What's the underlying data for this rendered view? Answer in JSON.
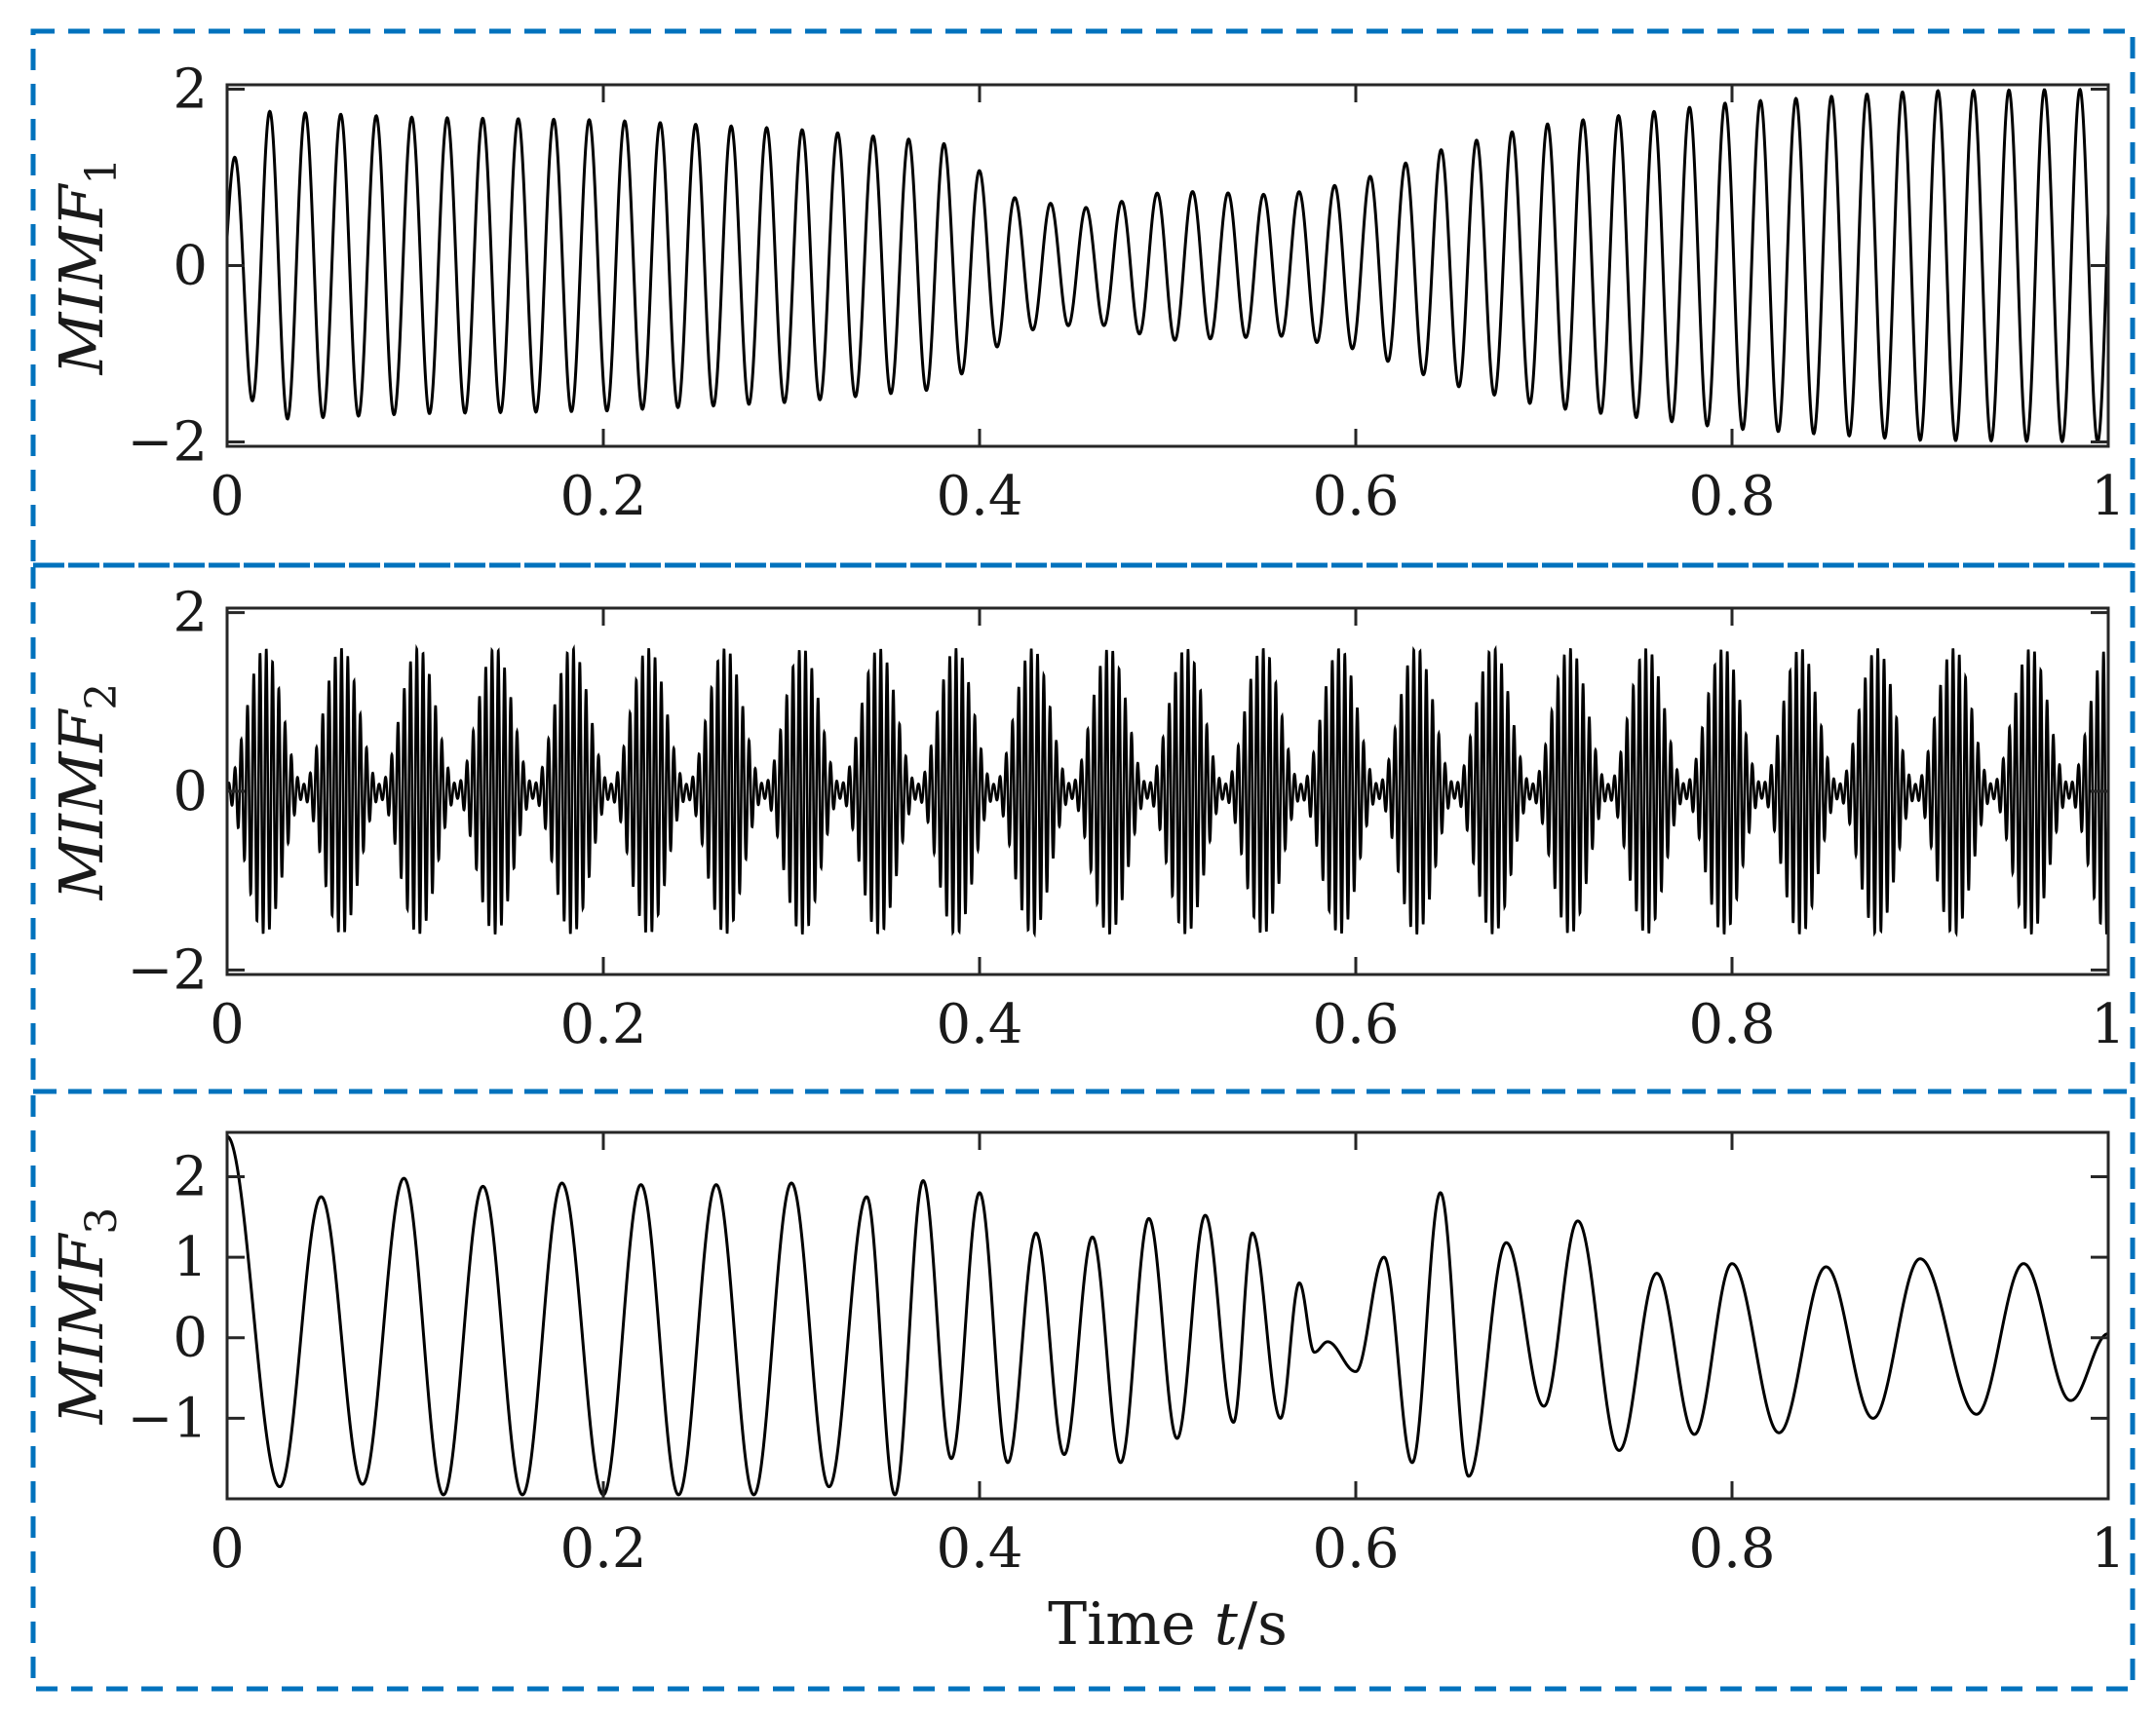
{
  "chart_data": [
    {
      "type": "line",
      "panel": 1,
      "ylabel_main": "MIMF",
      "ylabel_sub": "1",
      "xlabel": "",
      "xlim": [
        0,
        1
      ],
      "ylim": [
        -2.05,
        2.05
      ],
      "xticks": [
        0,
        0.2,
        0.4,
        0.6,
        0.8,
        1
      ],
      "xtick_labels": [
        "0",
        "0.2",
        "0.4",
        "0.6",
        "0.8",
        "1"
      ],
      "yticks": [
        2,
        0,
        -2
      ],
      "ytick_labels": [
        "2",
        "0",
        "−2"
      ],
      "series": [
        {
          "description_values": "sinusoid ~53 Hz with slowly varying amplitude",
          "frequency_hz": 53,
          "amplitude_envelope": {
            "t": [
              0,
              0.02,
              0.1,
              0.2,
              0.3,
              0.38,
              0.42,
              0.46,
              0.5,
              0.56,
              0.6,
              0.65,
              0.7,
              0.8,
              0.9,
              1.0
            ],
            "a": [
              1.1,
              1.75,
              1.68,
              1.65,
              1.55,
              1.4,
              0.75,
              0.65,
              0.85,
              0.8,
              0.95,
              1.35,
              1.6,
              1.85,
              1.98,
              2.0
            ]
          }
        }
      ],
      "grid": false
    },
    {
      "type": "line",
      "panel": 2,
      "ylabel_main": "MIMF",
      "ylabel_sub": "2",
      "xlabel": "",
      "xlim": [
        0,
        1
      ],
      "ylim": [
        -2.05,
        2.05
      ],
      "xticks": [
        0,
        0.2,
        0.4,
        0.6,
        0.8,
        1
      ],
      "xtick_labels": [
        "0",
        "0.2",
        "0.4",
        "0.6",
        "0.8",
        "1"
      ],
      "yticks": [
        2,
        0,
        -2
      ],
      "ytick_labels": [
        "2",
        "0",
        "−2"
      ],
      "series": [
        {
          "description_values": "amplitude-modulated carrier ~300 Hz, modulation bursts ~24.5 per second, peak amplitude ~1.6",
          "carrier_hz": 300,
          "burst_rate_hz": 24.5,
          "peak_amplitude": 1.6,
          "first_burst_center": 0.02
        }
      ],
      "grid": false
    },
    {
      "type": "line",
      "panel": 3,
      "ylabel_main": "MIMF",
      "ylabel_sub": "3",
      "xlabel_prefix": "Time ",
      "xlabel_var": "t",
      "xlabel_suffix": "/s",
      "xlim": [
        0,
        1
      ],
      "ylim": [
        -2.0,
        2.55
      ],
      "xticks": [
        0,
        0.2,
        0.4,
        0.6,
        0.8,
        1
      ],
      "xtick_labels": [
        "0",
        "0.2",
        "0.4",
        "0.6",
        "0.8",
        "1"
      ],
      "yticks": [
        2,
        1,
        0,
        -1
      ],
      "ytick_labels": [
        "2",
        "1",
        "0",
        "−1"
      ],
      "series": [
        {
          "description_values": "oscillation ~26 Hz until 0.55 s, irregular lower-frequency oscillation afterwards",
          "extrema": {
            "t": [
              0.0,
              0.028,
              0.05,
              0.072,
              0.094,
              0.115,
              0.136,
              0.157,
              0.178,
              0.2,
              0.22,
              0.24,
              0.26,
              0.28,
              0.3,
              0.32,
              0.34,
              0.355,
              0.37,
              0.385,
              0.4,
              0.415,
              0.43,
              0.445,
              0.46,
              0.475,
              0.49,
              0.505,
              0.52,
              0.535,
              0.545,
              0.56,
              0.57,
              0.578,
              0.585,
              0.6,
              0.615,
              0.63,
              0.645,
              0.66,
              0.68,
              0.7,
              0.718,
              0.74,
              0.76,
              0.78,
              0.8,
              0.825,
              0.85,
              0.875,
              0.9,
              0.93,
              0.955,
              0.98,
              1.0
            ],
            "y": [
              2.5,
              -1.85,
              1.75,
              -1.82,
              1.98,
              -1.95,
              1.88,
              -1.95,
              1.92,
              -1.95,
              1.9,
              -1.95,
              1.9,
              -1.95,
              1.92,
              -1.85,
              1.75,
              -1.95,
              1.95,
              -1.5,
              1.8,
              -1.55,
              1.3,
              -1.45,
              1.25,
              -1.55,
              1.48,
              -1.25,
              1.52,
              -1.05,
              1.3,
              -1.0,
              0.68,
              -0.18,
              -0.05,
              -0.42,
              1.0,
              -1.55,
              1.8,
              -1.72,
              1.18,
              -0.85,
              1.45,
              -1.4,
              0.8,
              -1.2,
              0.92,
              -1.18,
              0.88,
              -1.0,
              0.98,
              -0.95,
              0.92,
              -0.78,
              0.05
            ]
          }
        }
      ],
      "grid": false
    }
  ],
  "style": {
    "frame_color": "#0072BD",
    "line_color": "#000000",
    "axis_color": "#262626"
  }
}
